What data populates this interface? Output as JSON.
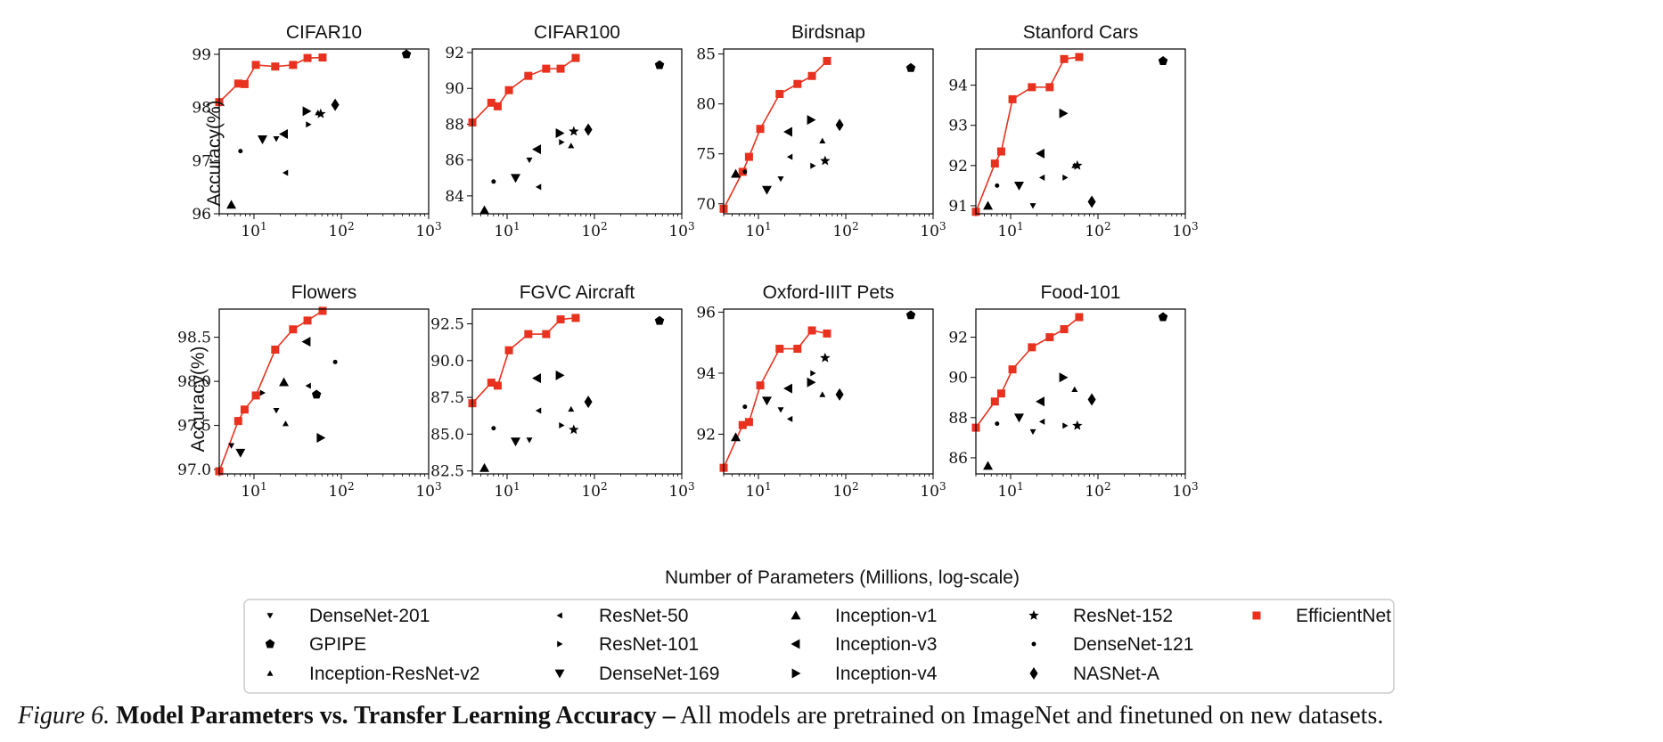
{
  "figure": {
    "xlabel": "Number of Parameters (Millions, log-scale)",
    "ylabel": "Accuracy(%)",
    "caption": {
      "label": "Figure 6.",
      "bold": "Model Parameters vs. Transfer Learning Accuracy –",
      "text": " All models are pretrained on ImageNet and finetuned on new datasets."
    },
    "colors": {
      "efficientnet": "#e8321f",
      "baseline": "#000000",
      "legend_border": "#cccccc"
    }
  },
  "legend": [
    {
      "name": "DenseNet-201",
      "marker": "tri-down-small"
    },
    {
      "name": "GPIPE",
      "marker": "pentagon"
    },
    {
      "name": "Inception-ResNet-v2",
      "marker": "tri-up-small"
    },
    {
      "name": "ResNet-50",
      "marker": "tri-left-small"
    },
    {
      "name": "ResNet-101",
      "marker": "tri-right-small"
    },
    {
      "name": "DenseNet-169",
      "marker": "tri-down"
    },
    {
      "name": "Inception-v1",
      "marker": "tri-up"
    },
    {
      "name": "Inception-v3",
      "marker": "tri-left"
    },
    {
      "name": "Inception-v4",
      "marker": "tri-right"
    },
    {
      "name": "ResNet-152",
      "marker": "star"
    },
    {
      "name": "DenseNet-121",
      "marker": "dot"
    },
    {
      "name": "NASNet-A",
      "marker": "diamond"
    },
    {
      "name": "EfficientNet",
      "marker": "square"
    }
  ],
  "chart_data": [
    {
      "type": "scatter",
      "title": "CIFAR10",
      "xscale": "log",
      "xlim": [
        4,
        1000
      ],
      "ylim": [
        96,
        99.1
      ],
      "xtick_labels": [
        "10^1",
        "10^2",
        "10^3"
      ],
      "yticks": [
        96,
        97,
        98,
        99
      ],
      "ytick_labels": [
        "96",
        "97",
        "98",
        "99"
      ],
      "efficientnet": {
        "x": [
          4,
          6.6,
          7.8,
          10.5,
          17.5,
          28,
          41,
          61
        ],
        "y": [
          98.1,
          98.45,
          98.44,
          98.8,
          98.77,
          98.8,
          98.93,
          98.94
        ]
      },
      "baselines": [
        {
          "model": "Inception-v1",
          "x": 5.5,
          "y": 96.17
        },
        {
          "model": "DenseNet-121",
          "x": 7,
          "y": 97.18
        },
        {
          "model": "DenseNet-169",
          "x": 12.5,
          "y": 97.4
        },
        {
          "model": "DenseNet-201",
          "x": 18,
          "y": 97.41
        },
        {
          "model": "Inception-v3",
          "x": 22,
          "y": 97.5
        },
        {
          "model": "ResNet-50",
          "x": 23,
          "y": 96.77
        },
        {
          "model": "Inception-v4",
          "x": 40,
          "y": 97.93
        },
        {
          "model": "ResNet-101",
          "x": 42,
          "y": 97.68
        },
        {
          "model": "Inception-ResNet-v2",
          "x": 54,
          "y": 97.9
        },
        {
          "model": "ResNet-152",
          "x": 58,
          "y": 97.88
        },
        {
          "model": "NASNet-A",
          "x": 85,
          "y": 98.05
        },
        {
          "model": "GPIPE",
          "x": 556,
          "y": 99.0
        }
      ]
    },
    {
      "type": "scatter",
      "title": "CIFAR100",
      "xscale": "log",
      "xlim": [
        4,
        1000
      ],
      "ylim": [
        83,
        92.2
      ],
      "xtick_labels": [
        "10^1",
        "10^2",
        "10^3"
      ],
      "yticks": [
        84,
        86,
        88,
        90,
        92
      ],
      "ytick_labels": [
        "84",
        "86",
        "88",
        "90",
        "92"
      ],
      "efficientnet": {
        "x": [
          4,
          6.6,
          7.8,
          10.5,
          17.5,
          28,
          41,
          61
        ],
        "y": [
          88.1,
          89.2,
          89.0,
          89.9,
          90.7,
          91.1,
          91.1,
          91.7
        ]
      },
      "baselines": [
        {
          "model": "Inception-v1",
          "x": 5.5,
          "y": 83.2
        },
        {
          "model": "DenseNet-121",
          "x": 7,
          "y": 84.8
        },
        {
          "model": "DenseNet-169",
          "x": 12.5,
          "y": 85.0
        },
        {
          "model": "DenseNet-201",
          "x": 18,
          "y": 86.0
        },
        {
          "model": "Inception-v3",
          "x": 22,
          "y": 86.6
        },
        {
          "model": "ResNet-50",
          "x": 23,
          "y": 84.5
        },
        {
          "model": "Inception-v4",
          "x": 40,
          "y": 87.5
        },
        {
          "model": "ResNet-101",
          "x": 42,
          "y": 87.0
        },
        {
          "model": "Inception-ResNet-v2",
          "x": 54,
          "y": 86.8
        },
        {
          "model": "ResNet-152",
          "x": 58,
          "y": 87.6
        },
        {
          "model": "NASNet-A",
          "x": 85,
          "y": 87.7
        },
        {
          "model": "GPIPE",
          "x": 556,
          "y": 91.3
        }
      ]
    },
    {
      "type": "scatter",
      "title": "Birdsnap",
      "xscale": "log",
      "xlim": [
        4,
        1000
      ],
      "ylim": [
        69,
        85.5
      ],
      "xtick_labels": [
        "10^1",
        "10^2",
        "10^3"
      ],
      "yticks": [
        70,
        75,
        80,
        85
      ],
      "ytick_labels": [
        "70",
        "75",
        "80",
        "85"
      ],
      "efficientnet": {
        "x": [
          4,
          6.6,
          7.8,
          10.5,
          17.5,
          28,
          41,
          61
        ],
        "y": [
          69.5,
          73.2,
          74.7,
          77.5,
          81.0,
          82.0,
          82.8,
          84.3
        ]
      },
      "baselines": [
        {
          "model": "Inception-v1",
          "x": 5.5,
          "y": 73.0
        },
        {
          "model": "DenseNet-121",
          "x": 7,
          "y": 73.2
        },
        {
          "model": "DenseNet-169",
          "x": 12.5,
          "y": 71.4
        },
        {
          "model": "DenseNet-201",
          "x": 18,
          "y": 72.5
        },
        {
          "model": "Inception-v3",
          "x": 22,
          "y": 77.2
        },
        {
          "model": "ResNet-50",
          "x": 23,
          "y": 74.7
        },
        {
          "model": "Inception-v4",
          "x": 40,
          "y": 78.4
        },
        {
          "model": "ResNet-101",
          "x": 42,
          "y": 73.8
        },
        {
          "model": "Inception-ResNet-v2",
          "x": 54,
          "y": 76.3
        },
        {
          "model": "ResNet-152",
          "x": 58,
          "y": 74.3
        },
        {
          "model": "NASNet-A",
          "x": 85,
          "y": 77.9
        },
        {
          "model": "GPIPE",
          "x": 556,
          "y": 83.6
        }
      ]
    },
    {
      "type": "scatter",
      "title": "Stanford Cars",
      "xscale": "log",
      "xlim": [
        4,
        1000
      ],
      "ylim": [
        90.8,
        94.9
      ],
      "xtick_labels": [
        "10^1",
        "10^2",
        "10^3"
      ],
      "yticks": [
        91,
        92,
        93,
        94
      ],
      "ytick_labels": [
        "91",
        "92",
        "93",
        "94"
      ],
      "efficientnet": {
        "x": [
          4,
          6.6,
          7.8,
          10.5,
          17.5,
          28,
          41,
          61
        ],
        "y": [
          90.85,
          92.05,
          92.35,
          93.65,
          93.95,
          93.95,
          94.65,
          94.7
        ]
      },
      "baselines": [
        {
          "model": "Inception-v1",
          "x": 5.5,
          "y": 91.0
        },
        {
          "model": "DenseNet-121",
          "x": 7,
          "y": 91.5
        },
        {
          "model": "DenseNet-169",
          "x": 12.5,
          "y": 91.5
        },
        {
          "model": "DenseNet-201",
          "x": 18,
          "y": 91.0
        },
        {
          "model": "Inception-v3",
          "x": 22,
          "y": 92.3
        },
        {
          "model": "ResNet-50",
          "x": 23,
          "y": 91.7
        },
        {
          "model": "Inception-v4",
          "x": 40,
          "y": 93.3
        },
        {
          "model": "ResNet-101",
          "x": 42,
          "y": 91.7
        },
        {
          "model": "Inception-ResNet-v2",
          "x": 54,
          "y": 92.0
        },
        {
          "model": "ResNet-152",
          "x": 58,
          "y": 92.0
        },
        {
          "model": "NASNet-A",
          "x": 85,
          "y": 91.1
        },
        {
          "model": "GPIPE",
          "x": 556,
          "y": 94.6
        }
      ]
    },
    {
      "type": "scatter",
      "title": "Flowers",
      "xscale": "log",
      "xlim": [
        4,
        1000
      ],
      "ylim": [
        96.95,
        98.82
      ],
      "xtick_labels": [
        "10^1",
        "10^2",
        "10^3"
      ],
      "yticks": [
        97.0,
        97.5,
        98.0,
        98.5
      ],
      "ytick_labels": [
        "97.0",
        "97.5",
        "98.0",
        "98.5"
      ],
      "efficientnet": {
        "x": [
          4,
          6.6,
          7.8,
          10.5,
          17.5,
          28,
          41,
          61
        ],
        "y": [
          96.98,
          97.55,
          97.68,
          97.84,
          98.36,
          98.59,
          98.69,
          98.8
        ]
      },
      "baselines": [
        {
          "model": "DenseNet-201",
          "x": 5.5,
          "y": 97.27
        },
        {
          "model": "DenseNet-169",
          "x": 7,
          "y": 97.19
        },
        {
          "model": "ResNet-101",
          "x": 12.5,
          "y": 97.87
        },
        {
          "model": "DenseNet-201",
          "x": 18,
          "y": 97.67
        },
        {
          "model": "Inception-v1",
          "x": 22,
          "y": 97.99
        },
        {
          "model": "Inception-ResNet-v2",
          "x": 23,
          "y": 97.52
        },
        {
          "model": "Inception-v3",
          "x": 40,
          "y": 98.45
        },
        {
          "model": "ResNet-50",
          "x": 42,
          "y": 97.95
        },
        {
          "model": "GPIPE",
          "x": 52,
          "y": 97.85
        },
        {
          "model": "Inception-v4",
          "x": 58,
          "y": 97.36
        },
        {
          "model": "DenseNet-121",
          "x": 85,
          "y": 98.22
        }
      ]
    },
    {
      "type": "scatter",
      "title": "FGVC Aircraft",
      "xscale": "log",
      "xlim": [
        4,
        1000
      ],
      "ylim": [
        82.3,
        93.5
      ],
      "xtick_labels": [
        "10^1",
        "10^2",
        "10^3"
      ],
      "yticks": [
        82.5,
        85.0,
        87.5,
        90.0,
        92.5
      ],
      "ytick_labels": [
        "82.5",
        "85.0",
        "87.5",
        "90.0",
        "92.5"
      ],
      "efficientnet": {
        "x": [
          4,
          6.6,
          7.8,
          10.5,
          17.5,
          28,
          41,
          61
        ],
        "y": [
          87.1,
          88.5,
          88.3,
          90.7,
          91.8,
          91.8,
          92.8,
          92.9
        ]
      },
      "baselines": [
        {
          "model": "Inception-v1",
          "x": 5.5,
          "y": 82.7
        },
        {
          "model": "DenseNet-121",
          "x": 7,
          "y": 85.4
        },
        {
          "model": "DenseNet-169",
          "x": 12.5,
          "y": 84.5
        },
        {
          "model": "DenseNet-201",
          "x": 18,
          "y": 84.6
        },
        {
          "model": "Inception-v3",
          "x": 22,
          "y": 88.8
        },
        {
          "model": "ResNet-50",
          "x": 23,
          "y": 86.6
        },
        {
          "model": "Inception-v4",
          "x": 40,
          "y": 89.0
        },
        {
          "model": "ResNet-101",
          "x": 42,
          "y": 85.6
        },
        {
          "model": "Inception-ResNet-v2",
          "x": 54,
          "y": 86.7
        },
        {
          "model": "ResNet-152",
          "x": 58,
          "y": 85.3
        },
        {
          "model": "NASNet-A",
          "x": 85,
          "y": 87.2
        },
        {
          "model": "GPIPE",
          "x": 556,
          "y": 92.7
        }
      ]
    },
    {
      "type": "scatter",
      "title": "Oxford-IIIT Pets",
      "xscale": "log",
      "xlim": [
        4,
        1000
      ],
      "ylim": [
        90.7,
        96.1
      ],
      "xtick_labels": [
        "10^1",
        "10^2",
        "10^3"
      ],
      "yticks": [
        92,
        94,
        96
      ],
      "ytick_labels": [
        "92",
        "94",
        "96"
      ],
      "efficientnet": {
        "x": [
          4,
          6.6,
          7.8,
          10.5,
          17.5,
          28,
          41,
          61
        ],
        "y": [
          90.9,
          92.3,
          92.4,
          93.6,
          94.8,
          94.8,
          95.4,
          95.3
        ]
      },
      "baselines": [
        {
          "model": "Inception-v1",
          "x": 5.5,
          "y": 91.9
        },
        {
          "model": "DenseNet-121",
          "x": 7,
          "y": 92.9
        },
        {
          "model": "DenseNet-169",
          "x": 12.5,
          "y": 93.1
        },
        {
          "model": "DenseNet-201",
          "x": 18,
          "y": 92.8
        },
        {
          "model": "Inception-v3",
          "x": 22,
          "y": 93.5
        },
        {
          "model": "ResNet-50",
          "x": 23,
          "y": 92.5
        },
        {
          "model": "Inception-v4",
          "x": 40,
          "y": 93.7
        },
        {
          "model": "ResNet-101",
          "x": 42,
          "y": 94.0
        },
        {
          "model": "Inception-ResNet-v2",
          "x": 54,
          "y": 93.3
        },
        {
          "model": "ResNet-152",
          "x": 58,
          "y": 94.5
        },
        {
          "model": "NASNet-A",
          "x": 85,
          "y": 93.3
        },
        {
          "model": "GPIPE",
          "x": 556,
          "y": 95.9
        }
      ]
    },
    {
      "type": "scatter",
      "title": "Food-101",
      "xscale": "log",
      "xlim": [
        4,
        1000
      ],
      "ylim": [
        85.2,
        93.4
      ],
      "xtick_labels": [
        "10^1",
        "10^2",
        "10^3"
      ],
      "yticks": [
        86,
        88,
        90,
        92
      ],
      "ytick_labels": [
        "86",
        "88",
        "90",
        "92"
      ],
      "efficientnet": {
        "x": [
          4,
          6.6,
          7.8,
          10.5,
          17.5,
          28,
          41,
          61
        ],
        "y": [
          87.5,
          88.8,
          89.2,
          90.4,
          91.5,
          92.0,
          92.4,
          93.0
        ]
      },
      "baselines": [
        {
          "model": "Inception-v1",
          "x": 5.5,
          "y": 85.6
        },
        {
          "model": "DenseNet-121",
          "x": 7,
          "y": 87.7
        },
        {
          "model": "DenseNet-169",
          "x": 12.5,
          "y": 88.0
        },
        {
          "model": "DenseNet-201",
          "x": 18,
          "y": 87.3
        },
        {
          "model": "Inception-v3",
          "x": 22,
          "y": 88.8
        },
        {
          "model": "ResNet-50",
          "x": 23,
          "y": 87.8
        },
        {
          "model": "Inception-v4",
          "x": 40,
          "y": 90.0
        },
        {
          "model": "ResNet-101",
          "x": 42,
          "y": 87.6
        },
        {
          "model": "Inception-ResNet-v2",
          "x": 54,
          "y": 89.4
        },
        {
          "model": "ResNet-152",
          "x": 58,
          "y": 87.6
        },
        {
          "model": "NASNet-A",
          "x": 85,
          "y": 88.9
        },
        {
          "model": "GPIPE",
          "x": 556,
          "y": 93.0
        }
      ]
    }
  ]
}
